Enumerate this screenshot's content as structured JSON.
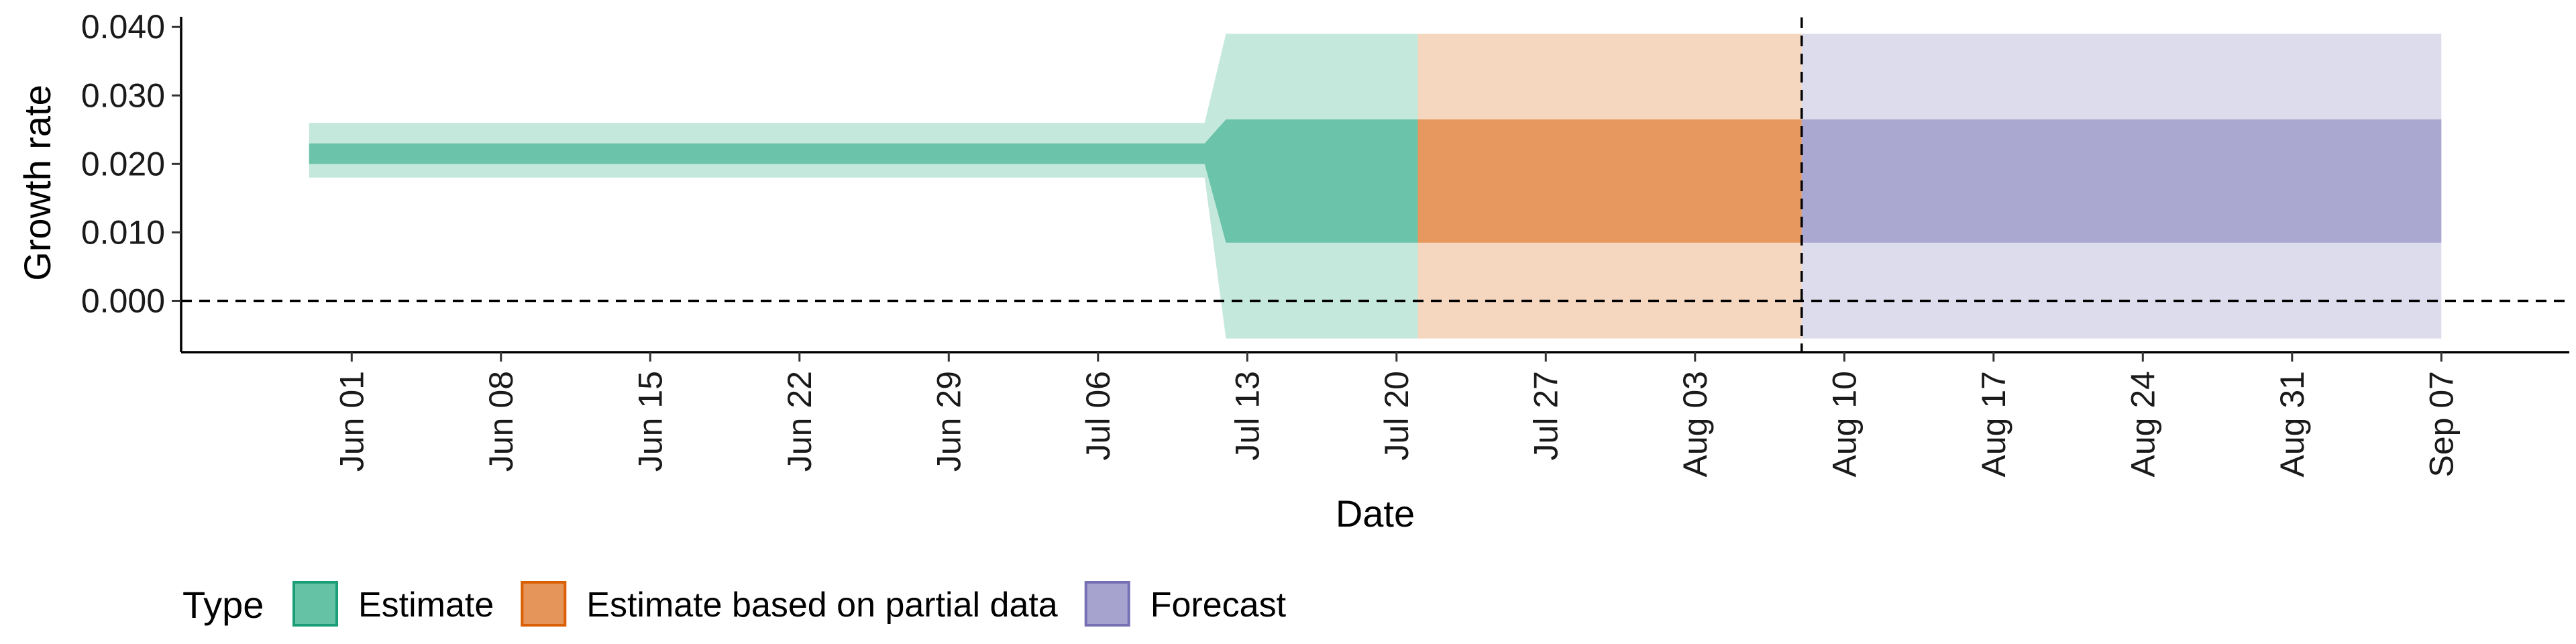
{
  "chart_data": {
    "type": "area",
    "title": "",
    "xlabel": "Date",
    "ylabel": "Growth rate",
    "ylim": [
      -0.0075,
      0.041
    ],
    "xlim": [
      "2021-05-24",
      "2021-09-13"
    ],
    "y_ticks": [
      "0.000",
      "0.010",
      "0.020",
      "0.030",
      "0.040"
    ],
    "y_tick_values": [
      0,
      0.01,
      0.02,
      0.03,
      0.04
    ],
    "x_ticks": [
      "Jun 01",
      "Jun 08",
      "Jun 15",
      "Jun 22",
      "Jun 29",
      "Jul 06",
      "Jul 13",
      "Jul 20",
      "Jul 27",
      "Aug 03",
      "Aug 10",
      "Aug 17",
      "Aug 24",
      "Aug 31",
      "Sep 07"
    ],
    "x_tick_values": [
      "2021-06-01",
      "2021-06-08",
      "2021-06-15",
      "2021-06-22",
      "2021-06-29",
      "2021-07-06",
      "2021-07-13",
      "2021-07-20",
      "2021-07-27",
      "2021-08-03",
      "2021-08-10",
      "2021-08-17",
      "2021-08-24",
      "2021-08-31",
      "2021-09-07"
    ],
    "reference_lines": [
      {
        "axis": "y",
        "value": 0,
        "style": "dashed"
      },
      {
        "axis": "x",
        "value": "2021-08-08",
        "style": "dashed"
      }
    ],
    "legend": {
      "title": "Type",
      "position": "bottom"
    },
    "series": [
      {
        "name": "Estimate",
        "color": "#66c2a5",
        "points": [
          {
            "x": "2021-05-31",
            "lower90": 0.018,
            "lower50": 0.02,
            "upper50": 0.023,
            "upper90": 0.026
          },
          {
            "x": "2021-07-11",
            "lower90": 0.018,
            "lower50": 0.02,
            "upper50": 0.023,
            "upper90": 0.026
          },
          {
            "x": "2021-07-12",
            "lower90": -0.0055,
            "lower50": 0.0085,
            "upper50": 0.0265,
            "upper90": 0.039
          },
          {
            "x": "2021-07-21",
            "lower90": -0.0055,
            "lower50": 0.0085,
            "upper50": 0.0265,
            "upper90": 0.039
          }
        ]
      },
      {
        "name": "Estimate based on partial data",
        "color": "#e6955a",
        "points": [
          {
            "x": "2021-07-22",
            "lower90": -0.0055,
            "lower50": 0.0085,
            "upper50": 0.0265,
            "upper90": 0.039
          },
          {
            "x": "2021-08-08",
            "lower90": -0.0055,
            "lower50": 0.0085,
            "upper50": 0.0265,
            "upper90": 0.039
          }
        ]
      },
      {
        "name": "Forecast",
        "color": "#a6a3cf",
        "points": [
          {
            "x": "2021-08-09",
            "lower90": -0.0055,
            "lower50": 0.0085,
            "upper50": 0.0265,
            "upper90": 0.039
          },
          {
            "x": "2021-09-07",
            "lower90": -0.0055,
            "lower50": 0.0085,
            "upper50": 0.0265,
            "upper90": 0.039
          }
        ]
      }
    ]
  }
}
